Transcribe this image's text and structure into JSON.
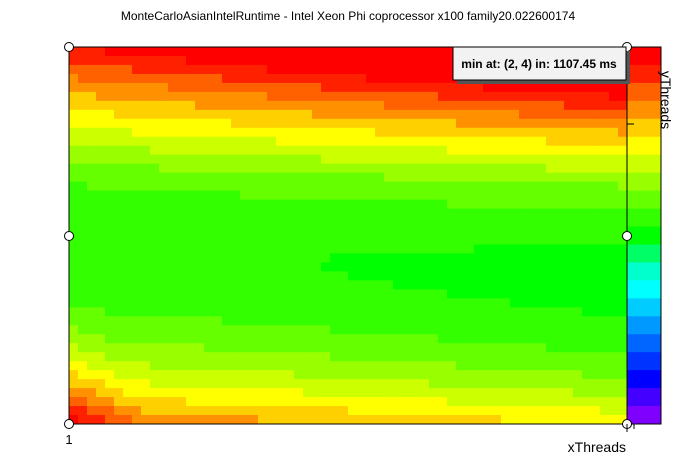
{
  "chart_data": {
    "type": "heatmap",
    "title": "MonteCarloAsianIntelRuntime - Intel Xeon Phi coprocessor x100 family20.022600174",
    "xlabel": "xThreads",
    "ylabel": "yThreads",
    "x_tick_labels": [
      "1"
    ],
    "annotation": "min at: (2, 4) in: 1107.45 ms",
    "colormap_levels": 20,
    "colormap": [
      "#ff0000",
      "#ff2000",
      "#ff6000",
      "#ff9000",
      "#ffd000",
      "#ffff00",
      "#ccff00",
      "#99ff00",
      "#66ff00",
      "#33ff00",
      "#00ff00",
      "#00ff66",
      "#00ffcc",
      "#00ffff",
      "#00ccff",
      "#0099ff",
      "#0066ff",
      "#0033ff",
      "#0000ff",
      "#4400ff",
      "#8000ff"
    ],
    "grid": false,
    "legend": "colorbar-right"
  }
}
